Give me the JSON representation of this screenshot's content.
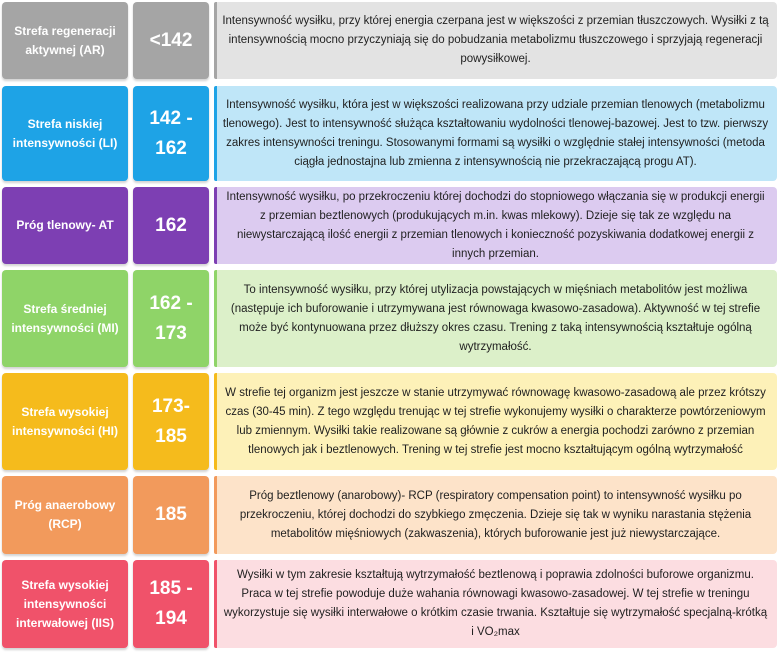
{
  "colors": {
    "ar": "#a5a5a5",
    "ar_light": "#e3e3e3",
    "li": "#1ea3e6",
    "li_light": "#bfe6f8",
    "at": "#7d3fb3",
    "at_light": "#dccbf0",
    "mi": "#8fd468",
    "mi_light": "#dcf0c9",
    "hi": "#f5bb1c",
    "hi_light": "#fdf1b8",
    "rcp": "#f29a5c",
    "rcp_light": "#fde3c9",
    "iis": "#f0526a",
    "iis_light": "#fcdde1"
  },
  "rows": [
    {
      "zone": "Strefa regeneracji aktywnej (AR)",
      "value": "<142",
      "description": "Intensywność wysiłku, przy której energia czerpana jest w większości z przemian tłuszczowych. Wysiłki z tą intensywnością mocno przyczyniają się do pobudzania metabolizmu tłuszczowego i sprzyjają regeneracji powysiłkowej."
    },
    {
      "zone": "Strefa niskiej intensywności (LI)",
      "value": "142 - 162",
      "description": "Intensywność wysiłku, która jest w większości realizowana przy udziale przemian tlenowych (metabolizmu tlenowego). Jest to intensywność służąca kształtowaniu wydolności tlenowej-bazowej. Jest to tzw. pierwszy zakres intensywności treningu. Stosowanymi formami są wysiłki o względnie stałej intensywności (metoda ciągła jednostajna lub zmienna z intensywnością nie przekraczającą progu AT)."
    },
    {
      "zone": "Próg tlenowy- AT",
      "value": "162",
      "description": "Intensywność wysiłku, po przekroczeniu której dochodzi do stopniowego włączania się w produkcji energii z przemian beztlenowych (produkujących m.in. kwas mlekowy).  Dzieje się tak ze względu na niewystarczającą ilość energii z przemian tlenowych i konieczność pozyskiwania dodatkowej energii z innych przemian."
    },
    {
      "zone": "Strefa średniej intensywności (MI)",
      "value": "162 - 173",
      "description": "To intensywność wysiłku, przy której utylizacja powstających w mięśniach metabolitów jest możliwa (następuje ich buforowanie i utrzymywana jest równowaga kwasowo-zasadowa). Aktywność w tej strefie może być kontynuowana przez dłuższy okres czasu. Trening z taką intensywnością kształtuje ogólną wytrzymałość."
    },
    {
      "zone": "Strefa wysokiej intensywności (HI)",
      "value": "173-185",
      "description": "W strefie tej organizm jest jeszcze w stanie utrzymywać równowagę kwasowo-zasadową ale przez krótszy czas (30-45 min). Z tego względu trenując w tej strefie wykonujemy wysiłki o charakterze powtórzeniowym lub zmiennym. Wysiłki takie realizowane są głównie z cukrów a energia pochodzi zarówno z przemian tlenowych jak i beztlenowych. Trening w tej strefie jest mocno kształtującym ogólną wytrzymałość"
    },
    {
      "zone": "Próg anaerobowy (RCP)",
      "value": "185",
      "description": "Próg beztlenowy (anarobowy)- RCP (respiratory compensation point) to intensywność wysiłku po przekroczeniu, której dochodzi do szybkiego zmęczenia. Dzieje się tak w wyniku narastania stężenia metabolitów mięśniowych (zakwaszenia), których buforowanie jest już  niewystarczające."
    },
    {
      "zone": "Strefa wysokiej intensywności interwałowej (IIS)",
      "value": "185 - 194",
      "description": "Wysiłki w tym zakresie kształtują wytrzymałość beztlenową i poprawia zdolności buforowe organizmu. Praca w tej strefie powoduje duże wahania równowagi kwasowo-zasadowej. W tej strefie w treningu wykorzystuje się wysiłki interwałowe o krótkim czasie trwania. Kształtuje się wytrzymałość specjalną-krótką i VO₂max"
    }
  ]
}
